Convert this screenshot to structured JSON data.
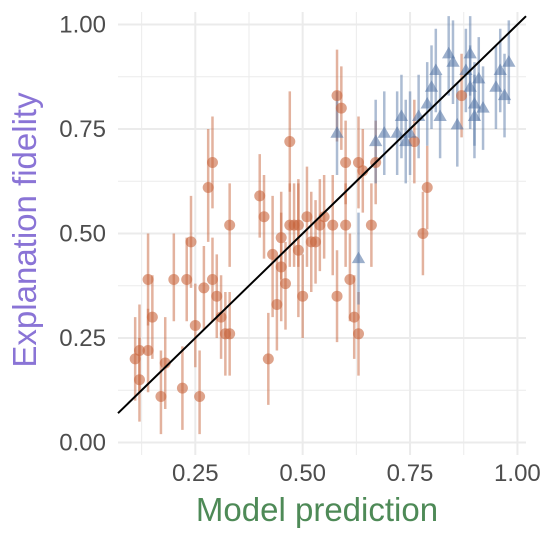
{
  "chart_data": {
    "type": "scatter",
    "title": "",
    "xlabel": "Model prediction",
    "ylabel": "Explanation fidelity",
    "xlabel_color": "#4e8a57",
    "ylabel_color": "#8a74d6",
    "xlim": [
      0.07,
      1.02
    ],
    "ylim": [
      -0.03,
      1.03
    ],
    "xticks": [
      0.25,
      0.5,
      0.75,
      1.0
    ],
    "xtick_labels": [
      "0.25",
      "0.50",
      "0.75",
      "1.00"
    ],
    "yticks": [
      0.0,
      0.25,
      0.5,
      0.75,
      1.0
    ],
    "ytick_labels": [
      "0.00",
      "0.25",
      "0.50",
      "0.75",
      "1.00"
    ],
    "grid": true,
    "background": "#ffffff",
    "grid_color": "#ebebeb",
    "reference_line": {
      "slope": 1,
      "intercept": 0,
      "color": "#000000"
    },
    "series": [
      {
        "marker": "circle",
        "color": "#c8663e",
        "points": [
          {
            "x": 0.11,
            "y": 0.2,
            "lo": 0.1,
            "hi": 0.3
          },
          {
            "x": 0.12,
            "y": 0.22,
            "lo": 0.12,
            "hi": 0.33
          },
          {
            "x": 0.12,
            "y": 0.15,
            "lo": 0.05,
            "hi": 0.25
          },
          {
            "x": 0.14,
            "y": 0.22,
            "lo": 0.12,
            "hi": 0.32
          },
          {
            "x": 0.14,
            "y": 0.39,
            "lo": 0.28,
            "hi": 0.5
          },
          {
            "x": 0.15,
            "y": 0.3,
            "lo": 0.2,
            "hi": 0.4
          },
          {
            "x": 0.17,
            "y": 0.11,
            "lo": 0.02,
            "hi": 0.22
          },
          {
            "x": 0.18,
            "y": 0.19,
            "lo": 0.08,
            "hi": 0.3
          },
          {
            "x": 0.2,
            "y": 0.39,
            "lo": 0.29,
            "hi": 0.5
          },
          {
            "x": 0.22,
            "y": 0.13,
            "lo": 0.03,
            "hi": 0.23
          },
          {
            "x": 0.23,
            "y": 0.39,
            "lo": 0.29,
            "hi": 0.49
          },
          {
            "x": 0.24,
            "y": 0.48,
            "lo": 0.37,
            "hi": 0.59
          },
          {
            "x": 0.25,
            "y": 0.28,
            "lo": 0.18,
            "hi": 0.38
          },
          {
            "x": 0.26,
            "y": 0.11,
            "lo": 0.02,
            "hi": 0.22
          },
          {
            "x": 0.27,
            "y": 0.37,
            "lo": 0.27,
            "hi": 0.47
          },
          {
            "x": 0.28,
            "y": 0.61,
            "lo": 0.48,
            "hi": 0.75
          },
          {
            "x": 0.29,
            "y": 0.67,
            "lo": 0.56,
            "hi": 0.78
          },
          {
            "x": 0.29,
            "y": 0.39,
            "lo": 0.29,
            "hi": 0.49
          },
          {
            "x": 0.3,
            "y": 0.35,
            "lo": 0.25,
            "hi": 0.45
          },
          {
            "x": 0.31,
            "y": 0.3,
            "lo": 0.2,
            "hi": 0.4
          },
          {
            "x": 0.32,
            "y": 0.26,
            "lo": 0.16,
            "hi": 0.36
          },
          {
            "x": 0.33,
            "y": 0.26,
            "lo": 0.16,
            "hi": 0.36
          },
          {
            "x": 0.33,
            "y": 0.52,
            "lo": 0.42,
            "hi": 0.62
          },
          {
            "x": 0.4,
            "y": 0.59,
            "lo": 0.49,
            "hi": 0.69
          },
          {
            "x": 0.41,
            "y": 0.54,
            "lo": 0.44,
            "hi": 0.64
          },
          {
            "x": 0.42,
            "y": 0.2,
            "lo": 0.09,
            "hi": 0.31
          },
          {
            "x": 0.43,
            "y": 0.45,
            "lo": 0.3,
            "hi": 0.59
          },
          {
            "x": 0.44,
            "y": 0.33,
            "lo": 0.22,
            "hi": 0.44
          },
          {
            "x": 0.45,
            "y": 0.49,
            "lo": 0.39,
            "hi": 0.6
          },
          {
            "x": 0.45,
            "y": 0.42,
            "lo": 0.29,
            "hi": 0.55
          },
          {
            "x": 0.46,
            "y": 0.38,
            "lo": 0.27,
            "hi": 0.48
          },
          {
            "x": 0.47,
            "y": 0.52,
            "lo": 0.42,
            "hi": 0.62
          },
          {
            "x": 0.47,
            "y": 0.72,
            "lo": 0.6,
            "hi": 0.84
          },
          {
            "x": 0.48,
            "y": 0.52,
            "lo": 0.42,
            "hi": 0.62
          },
          {
            "x": 0.49,
            "y": 0.46,
            "lo": 0.3,
            "hi": 0.63
          },
          {
            "x": 0.49,
            "y": 0.52,
            "lo": 0.42,
            "hi": 0.62
          },
          {
            "x": 0.5,
            "y": 0.35,
            "lo": 0.25,
            "hi": 0.45
          },
          {
            "x": 0.51,
            "y": 0.54,
            "lo": 0.42,
            "hi": 0.66
          },
          {
            "x": 0.52,
            "y": 0.48,
            "lo": 0.36,
            "hi": 0.6
          },
          {
            "x": 0.53,
            "y": 0.48,
            "lo": 0.38,
            "hi": 0.58
          },
          {
            "x": 0.54,
            "y": 0.52,
            "lo": 0.41,
            "hi": 0.63
          },
          {
            "x": 0.55,
            "y": 0.54,
            "lo": 0.44,
            "hi": 0.64
          },
          {
            "x": 0.57,
            "y": 0.52,
            "lo": 0.4,
            "hi": 0.64
          },
          {
            "x": 0.58,
            "y": 0.35,
            "lo": 0.24,
            "hi": 0.46
          },
          {
            "x": 0.58,
            "y": 0.83,
            "lo": 0.72,
            "hi": 0.94
          },
          {
            "x": 0.59,
            "y": 0.8,
            "lo": 0.7,
            "hi": 0.9
          },
          {
            "x": 0.6,
            "y": 0.52,
            "lo": 0.42,
            "hi": 0.62
          },
          {
            "x": 0.6,
            "y": 0.67,
            "lo": 0.57,
            "hi": 0.77
          },
          {
            "x": 0.61,
            "y": 0.39,
            "lo": 0.29,
            "hi": 0.5
          },
          {
            "x": 0.62,
            "y": 0.3,
            "lo": 0.2,
            "hi": 0.4
          },
          {
            "x": 0.63,
            "y": 0.26,
            "lo": 0.16,
            "hi": 0.36
          },
          {
            "x": 0.63,
            "y": 0.67,
            "lo": 0.56,
            "hi": 0.78
          },
          {
            "x": 0.64,
            "y": 0.65,
            "lo": 0.55,
            "hi": 0.75
          },
          {
            "x": 0.66,
            "y": 0.52,
            "lo": 0.42,
            "hi": 0.62
          },
          {
            "x": 0.67,
            "y": 0.67,
            "lo": 0.57,
            "hi": 0.77
          },
          {
            "x": 0.76,
            "y": 0.72,
            "lo": 0.62,
            "hi": 0.82
          },
          {
            "x": 0.78,
            "y": 0.5,
            "lo": 0.4,
            "hi": 0.6
          },
          {
            "x": 0.79,
            "y": 0.61,
            "lo": 0.51,
            "hi": 0.71
          },
          {
            "x": 0.87,
            "y": 0.83,
            "lo": 0.73,
            "hi": 0.93
          }
        ]
      },
      {
        "marker": "triangle",
        "color": "#5a79a8",
        "points": [
          {
            "x": 0.58,
            "y": 0.74,
            "lo": 0.64,
            "hi": 0.84
          },
          {
            "x": 0.63,
            "y": 0.44,
            "lo": 0.33,
            "hi": 0.55
          },
          {
            "x": 0.67,
            "y": 0.72,
            "lo": 0.62,
            "hi": 0.82
          },
          {
            "x": 0.69,
            "y": 0.74,
            "lo": 0.64,
            "hi": 0.84
          },
          {
            "x": 0.72,
            "y": 0.74,
            "lo": 0.64,
            "hi": 0.84
          },
          {
            "x": 0.73,
            "y": 0.78,
            "lo": 0.68,
            "hi": 0.88
          },
          {
            "x": 0.74,
            "y": 0.72,
            "lo": 0.62,
            "hi": 0.82
          },
          {
            "x": 0.75,
            "y": 0.74,
            "lo": 0.64,
            "hi": 0.84
          },
          {
            "x": 0.77,
            "y": 0.78,
            "lo": 0.68,
            "hi": 0.88
          },
          {
            "x": 0.79,
            "y": 0.81,
            "lo": 0.71,
            "hi": 0.91
          },
          {
            "x": 0.8,
            "y": 0.85,
            "lo": 0.75,
            "hi": 0.95
          },
          {
            "x": 0.81,
            "y": 0.89,
            "lo": 0.79,
            "hi": 0.99
          },
          {
            "x": 0.82,
            "y": 0.78,
            "lo": 0.68,
            "hi": 0.88
          },
          {
            "x": 0.84,
            "y": 0.93,
            "lo": 0.83,
            "hi": 1.02
          },
          {
            "x": 0.85,
            "y": 0.91,
            "lo": 0.81,
            "hi": 1.01
          },
          {
            "x": 0.86,
            "y": 0.76,
            "lo": 0.66,
            "hi": 0.86
          },
          {
            "x": 0.88,
            "y": 0.89,
            "lo": 0.79,
            "hi": 0.99
          },
          {
            "x": 0.89,
            "y": 0.85,
            "lo": 0.75,
            "hi": 0.95
          },
          {
            "x": 0.89,
            "y": 0.93,
            "lo": 0.83,
            "hi": 1.02
          },
          {
            "x": 0.9,
            "y": 0.81,
            "lo": 0.71,
            "hi": 0.91
          },
          {
            "x": 0.9,
            "y": 0.78,
            "lo": 0.68,
            "hi": 0.88
          },
          {
            "x": 0.91,
            "y": 0.87,
            "lo": 0.77,
            "hi": 0.97
          },
          {
            "x": 0.92,
            "y": 0.8,
            "lo": 0.7,
            "hi": 0.9
          },
          {
            "x": 0.95,
            "y": 0.85,
            "lo": 0.75,
            "hi": 0.95
          },
          {
            "x": 0.96,
            "y": 0.89,
            "lo": 0.79,
            "hi": 0.99
          },
          {
            "x": 0.97,
            "y": 0.83,
            "lo": 0.73,
            "hi": 0.93
          },
          {
            "x": 0.98,
            "y": 0.91,
            "lo": 0.81,
            "hi": 1.01
          }
        ]
      }
    ]
  }
}
